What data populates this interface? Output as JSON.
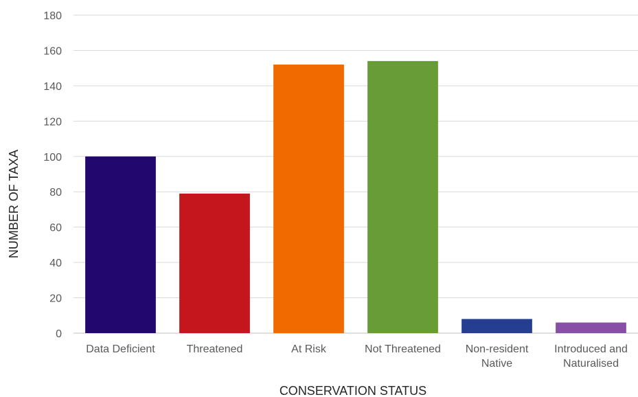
{
  "chart_data": {
    "type": "bar",
    "title": "",
    "xlabel": "CONSERVATION STATUS",
    "ylabel": "NUMBER OF TAXA",
    "categories": [
      [
        "Data Deficient"
      ],
      [
        "Threatened"
      ],
      [
        "At Risk"
      ],
      [
        "Not Threatened"
      ],
      [
        "Non-resident",
        "Native"
      ],
      [
        "Introduced and",
        "Naturalised"
      ]
    ],
    "values": [
      100,
      79,
      152,
      154,
      8,
      6
    ],
    "colors": [
      "#22076e",
      "#c4161c",
      "#f06a00",
      "#679c36",
      "#253e8f",
      "#8750a6"
    ],
    "ylim": [
      0,
      180
    ],
    "yticks": [
      0,
      20,
      40,
      60,
      80,
      100,
      120,
      140,
      160,
      180
    ],
    "grid": true,
    "legend": "none"
  }
}
